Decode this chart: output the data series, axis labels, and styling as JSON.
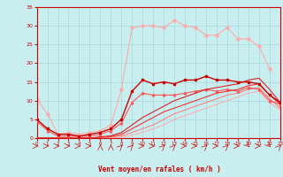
{
  "title": "",
  "xlabel": "Vent moyen/en rafales ( km/h )",
  "bg_color": "#c8eef0",
  "grid_color": "#a8d8dc",
  "axis_color": "#cc0000",
  "label_color": "#cc0000",
  "x_ticks": [
    0,
    1,
    2,
    3,
    4,
    5,
    6,
    7,
    8,
    9,
    10,
    11,
    12,
    13,
    14,
    15,
    16,
    17,
    18,
    19,
    20,
    21,
    22,
    23
  ],
  "y_ticks": [
    0,
    5,
    10,
    15,
    20,
    25,
    30,
    35
  ],
  "xlim": [
    0,
    23
  ],
  "ylim": [
    0,
    35
  ],
  "series": [
    {
      "y": [
        10.5,
        6.5,
        1.0,
        1.5,
        1.0,
        1.5,
        2.0,
        3.5,
        13.0,
        29.5,
        30.0,
        30.0,
        29.5,
        31.5,
        30.0,
        29.5,
        27.5,
        27.5,
        29.5,
        26.5,
        26.5,
        24.5,
        18.5,
        null
      ],
      "color": "#ffaaaa",
      "linewidth": 0.8,
      "marker": "D",
      "markersize": 1.8,
      "zorder": 2
    },
    {
      "y": [
        5.0,
        2.5,
        1.0,
        1.0,
        0.5,
        1.0,
        1.5,
        2.5,
        5.0,
        12.5,
        15.5,
        14.5,
        15.0,
        14.5,
        15.5,
        15.5,
        16.5,
        15.5,
        15.5,
        15.0,
        15.0,
        14.5,
        11.5,
        9.5
      ],
      "color": "#cc0000",
      "linewidth": 1.0,
      "marker": "s",
      "markersize": 1.8,
      "zorder": 4
    },
    {
      "y": [
        4.5,
        2.0,
        0.5,
        0.5,
        0.5,
        0.5,
        1.0,
        2.0,
        4.0,
        9.5,
        12.0,
        11.5,
        11.5,
        11.5,
        12.0,
        12.5,
        13.0,
        12.5,
        13.0,
        12.5,
        13.5,
        13.0,
        10.0,
        9.0
      ],
      "color": "#ff5555",
      "linewidth": 0.8,
      "marker": "^",
      "markersize": 1.8,
      "zorder": 3
    },
    {
      "y": [
        0.0,
        0.0,
        0.0,
        0.0,
        0.0,
        0.0,
        0.3,
        0.6,
        1.5,
        3.5,
        5.5,
        7.0,
        8.5,
        10.0,
        11.0,
        12.0,
        13.0,
        13.5,
        14.0,
        14.5,
        15.5,
        16.0,
        13.0,
        9.5
      ],
      "color": "#dd2222",
      "linewidth": 0.8,
      "marker": null,
      "markersize": 0,
      "zorder": 3
    },
    {
      "y": [
        0.0,
        0.0,
        0.0,
        0.0,
        0.0,
        0.0,
        0.2,
        0.4,
        1.0,
        2.5,
        4.0,
        5.5,
        7.0,
        8.0,
        9.0,
        10.0,
        11.0,
        12.0,
        12.5,
        13.0,
        14.0,
        14.5,
        11.5,
        9.0
      ],
      "color": "#ee3333",
      "linewidth": 0.8,
      "marker": null,
      "markersize": 0,
      "zorder": 3
    },
    {
      "y": [
        0.0,
        0.0,
        0.0,
        0.0,
        0.0,
        0.0,
        0.1,
        0.2,
        0.6,
        1.5,
        2.5,
        3.5,
        5.0,
        6.5,
        7.5,
        8.5,
        9.5,
        10.5,
        11.5,
        12.0,
        13.0,
        13.5,
        10.5,
        8.0
      ],
      "color": "#ff7777",
      "linewidth": 0.7,
      "marker": null,
      "markersize": 0,
      "zorder": 2
    },
    {
      "y": [
        0.0,
        0.0,
        0.0,
        0.0,
        0.0,
        0.0,
        0.1,
        0.1,
        0.3,
        0.8,
        1.5,
        2.5,
        3.5,
        5.0,
        6.0,
        7.0,
        8.0,
        9.0,
        10.0,
        11.0,
        12.0,
        12.5,
        9.5,
        7.5
      ],
      "color": "#ffaaaa",
      "linewidth": 0.7,
      "marker": null,
      "markersize": 0,
      "zorder": 2
    }
  ],
  "arrow_angles": [
    0,
    0,
    0,
    0,
    0,
    0,
    90,
    90,
    45,
    45,
    0,
    0,
    45,
    45,
    0,
    0,
    45,
    0,
    45,
    0,
    315,
    0,
    315,
    45
  ]
}
